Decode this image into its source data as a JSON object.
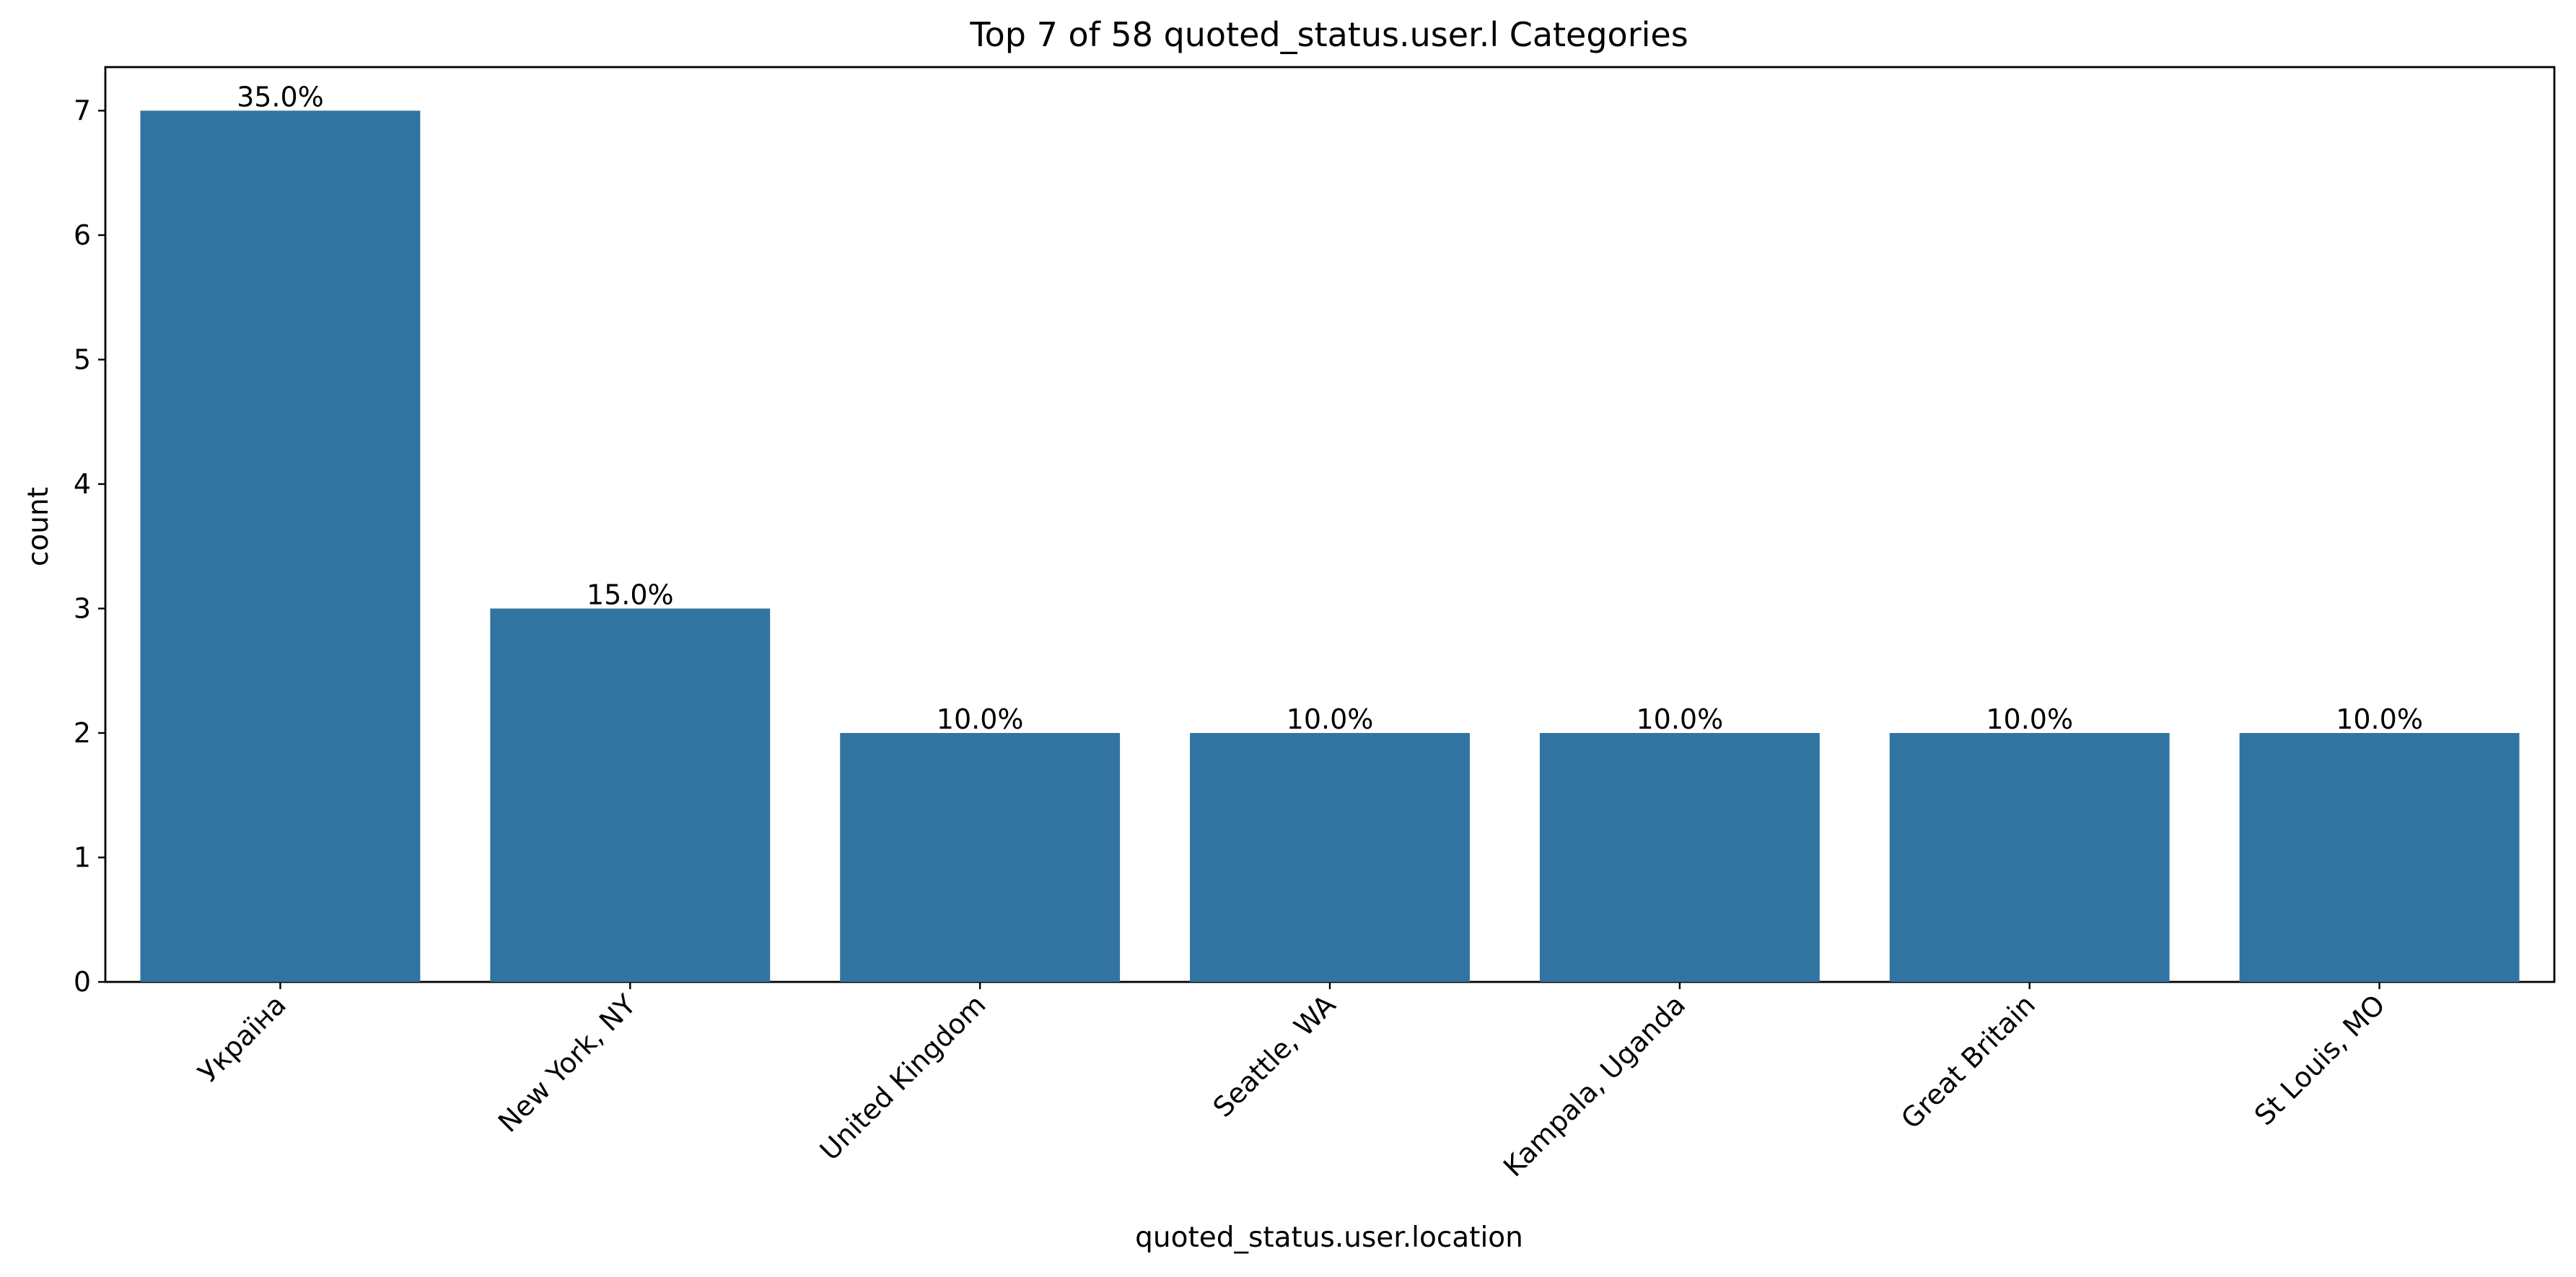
{
  "chart_data": {
    "type": "bar",
    "title": "Top 7 of 58 quoted_status.user.l Categories",
    "xlabel": "quoted_status.user.location",
    "ylabel": "count",
    "categories": [
      "Україна",
      "New York, NY",
      "United Kingdom",
      "Seattle, WA",
      "Kampala, Uganda",
      "Great Britain",
      "St Louis, MO"
    ],
    "values": [
      7,
      3,
      2,
      2,
      2,
      2,
      2
    ],
    "data_labels": [
      "35.0%",
      "15.0%",
      "10.0%",
      "10.0%",
      "10.0%",
      "10.0%",
      "10.0%"
    ],
    "ylim": [
      0,
      7.35
    ],
    "yticks": [
      0,
      1,
      2,
      3,
      4,
      5,
      6,
      7
    ],
    "grid": false,
    "bar_color": "#3274a1"
  }
}
